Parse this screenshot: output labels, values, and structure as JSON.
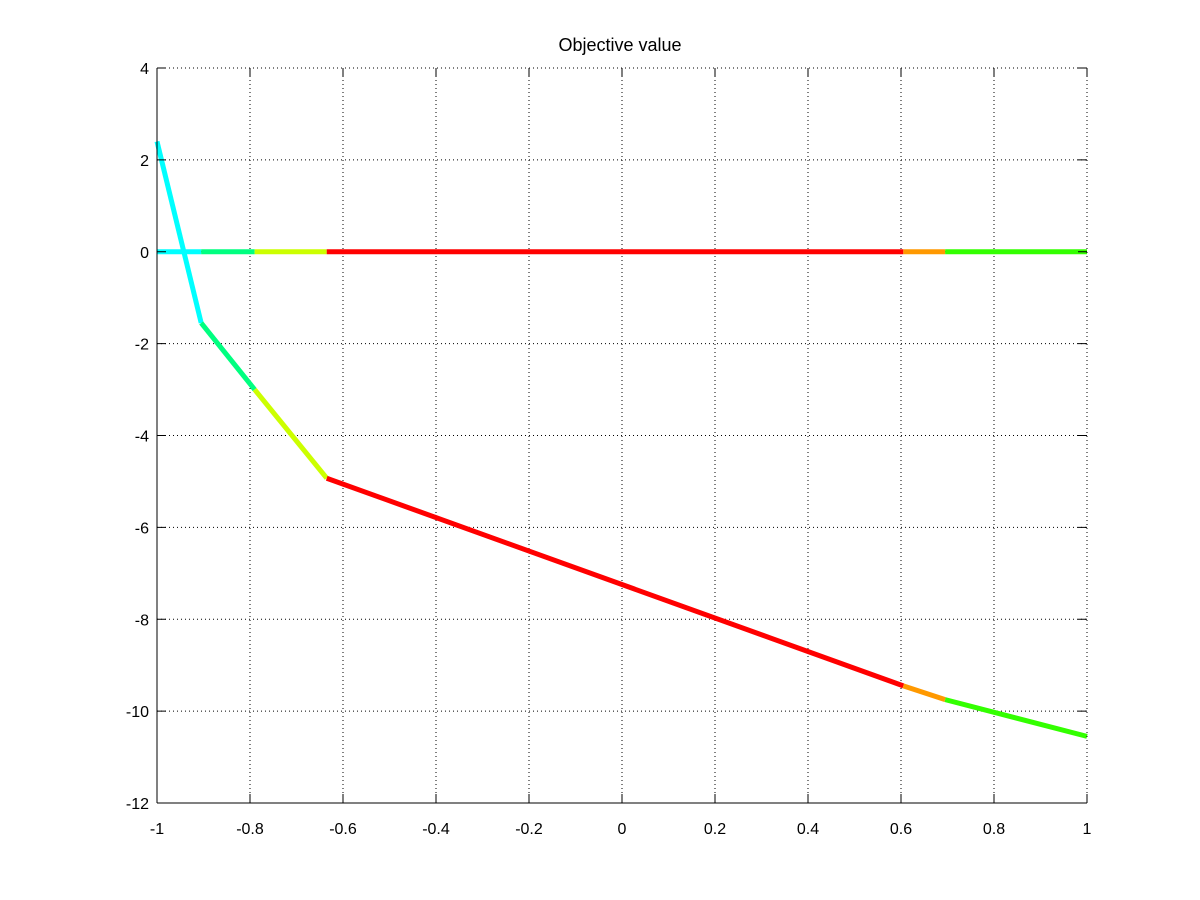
{
  "chart_data": {
    "type": "line",
    "title": "Objective value",
    "xlabel": "",
    "ylabel": "",
    "xlim": [
      -1,
      1
    ],
    "ylim": [
      -12,
      4
    ],
    "grid": true,
    "x_ticks": [
      -1,
      -0.8,
      -0.6,
      -0.4,
      -0.2,
      0,
      0.2,
      0.4,
      0.6,
      0.8,
      1
    ],
    "x_tick_labels": [
      "-1",
      "-0.8",
      "-0.6",
      "-0.4",
      "-0.2",
      "0",
      "0.2",
      "0.4",
      "0.6",
      "0.8",
      "1"
    ],
    "y_ticks": [
      -12,
      -10,
      -8,
      -6,
      -4,
      -2,
      0,
      2,
      4
    ],
    "y_tick_labels": [
      "-12",
      "-10",
      "-8",
      "-6",
      "-4",
      "-2",
      "0",
      "2",
      "4"
    ],
    "series": [
      {
        "segments": [
          {
            "color": "#00ffff",
            "x": [
              -1,
              -0.905
            ],
            "y": [
              0,
              0
            ]
          },
          {
            "color": "#00ff80",
            "x": [
              -0.905,
              -0.79
            ],
            "y": [
              0,
              0
            ]
          },
          {
            "color": "#ccff00",
            "x": [
              -0.79,
              -0.635
            ],
            "y": [
              0,
              0
            ]
          },
          {
            "color": "#ff0000",
            "x": [
              -0.635,
              0.605
            ],
            "y": [
              0,
              0
            ]
          },
          {
            "color": "#ff9900",
            "x": [
              0.605,
              0.695
            ],
            "y": [
              0,
              0
            ]
          },
          {
            "color": "#33ff00",
            "x": [
              0.695,
              1
            ],
            "y": [
              0,
              0
            ]
          }
        ]
      },
      {
        "segments": [
          {
            "color": "#00ffff",
            "x": [
              -1,
              -0.905
            ],
            "y": [
              2.4,
              -1.55
            ]
          },
          {
            "color": "#00ff80",
            "x": [
              -0.905,
              -0.79
            ],
            "y": [
              -1.55,
              -3.0
            ]
          },
          {
            "color": "#ccff00",
            "x": [
              -0.79,
              -0.635
            ],
            "y": [
              -3.0,
              -4.93
            ]
          },
          {
            "color": "#ff0000",
            "x": [
              -0.635,
              0.605
            ],
            "y": [
              -4.93,
              -9.45
            ]
          },
          {
            "color": "#ff9900",
            "x": [
              0.605,
              0.695
            ],
            "y": [
              -9.45,
              -9.75
            ]
          },
          {
            "color": "#33ff00",
            "x": [
              0.695,
              1
            ],
            "y": [
              -9.75,
              -10.55
            ]
          }
        ]
      }
    ]
  }
}
